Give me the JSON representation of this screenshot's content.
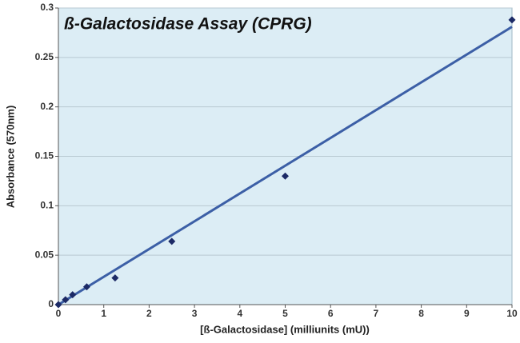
{
  "chart_data": {
    "type": "scatter",
    "title": "ß-Galactosidase Assay (CPRG)",
    "x_label": "[ß-Galactosidase] (milliunits (mU))",
    "y_label": "Absorbance (570nm)",
    "x": [
      0,
      0.156,
      0.3125,
      0.625,
      1.25,
      2.5,
      5,
      10
    ],
    "series": [
      {
        "color": "#1c2a66",
        "values": [
          0,
          0.005,
          0.01,
          0.018,
          0.027,
          0.064,
          0.13,
          0.288
        ]
      }
    ],
    "trendline": {
      "x": [
        0,
        10
      ],
      "values": [
        0,
        0.281
      ],
      "color": "#3c5fa6"
    },
    "xlim": [
      0,
      10
    ],
    "xticks": [
      0,
      1,
      2,
      3,
      4,
      5,
      6,
      7,
      8,
      9,
      10
    ],
    "ylim": [
      0,
      0.3
    ],
    "yticks": [
      0,
      0.05,
      0.1,
      0.15,
      0.2,
      0.25,
      0.3
    ],
    "grid": true
  }
}
